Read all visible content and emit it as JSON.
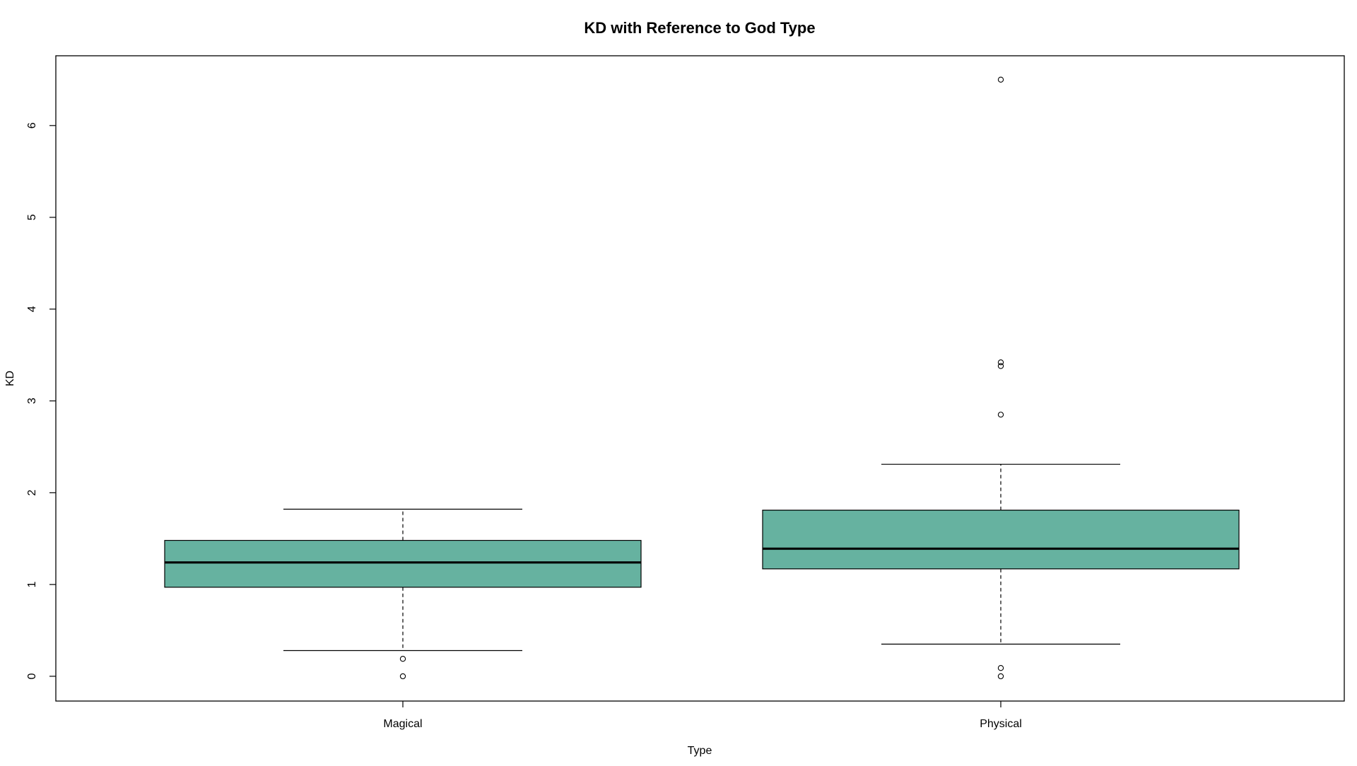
{
  "chart_data": {
    "type": "boxplot",
    "title": "KD with Reference to God Type",
    "xlabel": "Type",
    "ylabel": "KD",
    "ylim": [
      -0.27,
      6.76
    ],
    "y_ticks": [
      0,
      1,
      2,
      3,
      4,
      5,
      6
    ],
    "categories": [
      "Magical",
      "Physical"
    ],
    "box_color": "#66B2A0",
    "boxes": [
      {
        "category": "Magical",
        "whisker_low": 0.28,
        "q1": 0.97,
        "median": 1.24,
        "q3": 1.48,
        "whisker_high": 1.82,
        "outliers": [
          0.0,
          0.19
        ]
      },
      {
        "category": "Physical",
        "whisker_low": 0.35,
        "q1": 1.17,
        "median": 1.39,
        "q3": 1.81,
        "whisker_high": 2.31,
        "outliers": [
          0.0,
          0.09,
          2.85,
          3.38,
          3.42,
          6.5
        ]
      }
    ],
    "grid": false,
    "legend": "none"
  }
}
